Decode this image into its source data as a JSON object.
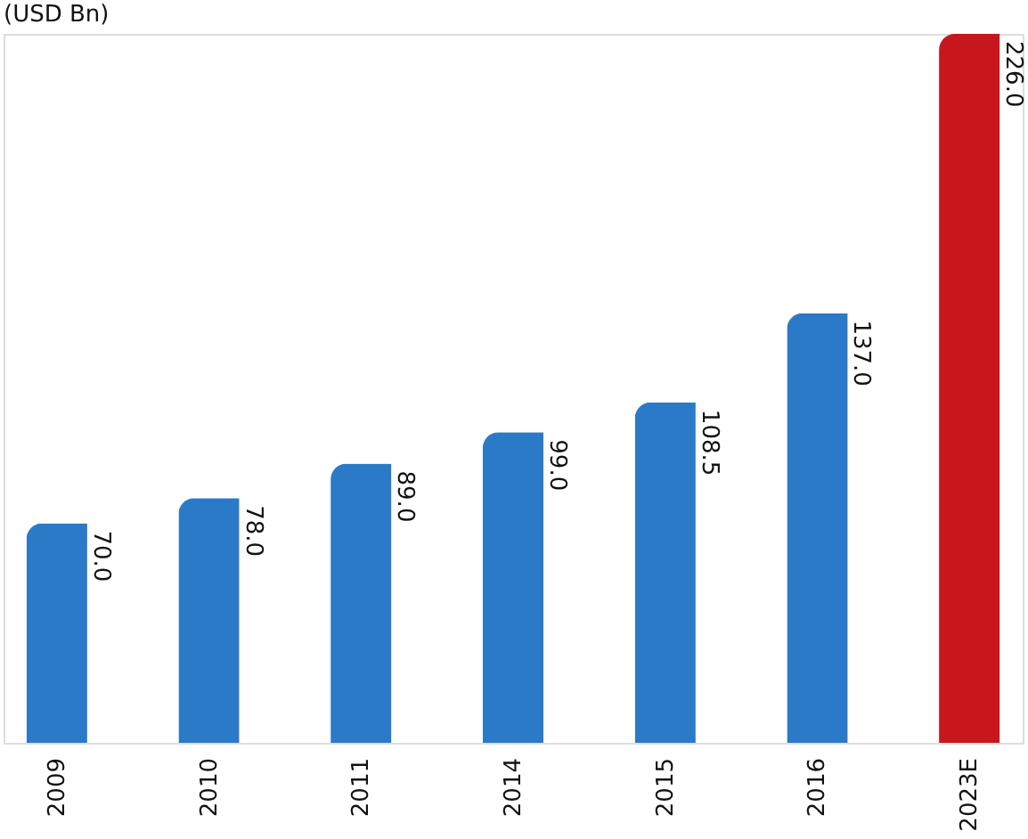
{
  "chart_data": {
    "type": "bar",
    "title": "(USD Bn)",
    "categories": [
      "2009",
      "2010",
      "2011",
      "2014",
      "2015",
      "2016",
      "2023E"
    ],
    "values": [
      70.0,
      78.0,
      89.0,
      99.0,
      108.5,
      137.0,
      226.0
    ],
    "colors": [
      "#2a7ac8",
      "#2a7ac8",
      "#2a7ac8",
      "#2a7ac8",
      "#2a7ac8",
      "#2a7ac8",
      "#c8161d"
    ],
    "value_labels": [
      "70.0",
      "78.0",
      "89.0",
      "99.0",
      "108.5",
      "137.0",
      "226.0"
    ]
  }
}
